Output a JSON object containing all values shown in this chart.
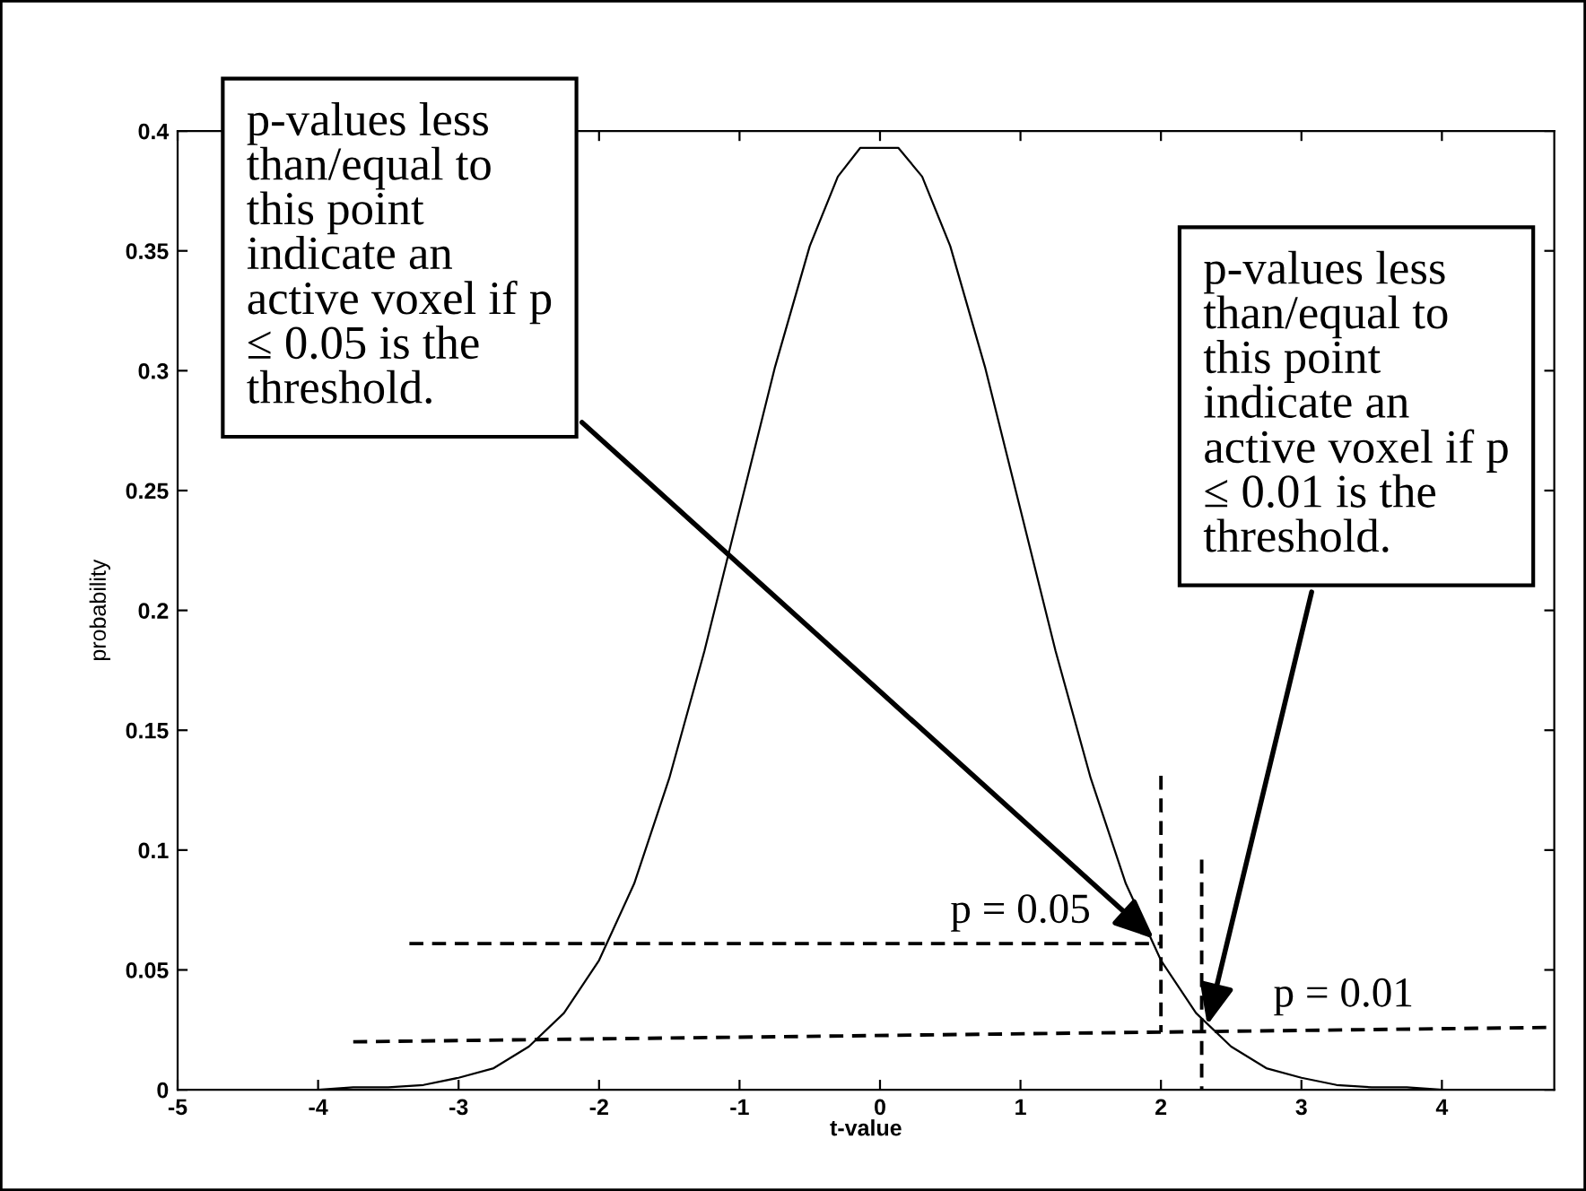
{
  "chart_data": {
    "type": "line",
    "xlabel": "t-value",
    "ylabel": "probability",
    "xlim": [
      -5,
      4.8
    ],
    "ylim": [
      0,
      0.4
    ],
    "xticks": [
      -5,
      -4,
      -3,
      -2,
      -1,
      0,
      1,
      2,
      3,
      4
    ],
    "yticks": [
      0,
      0.05,
      0.1,
      0.15,
      0.2,
      0.25,
      0.3,
      0.35,
      0.4
    ],
    "grid": false,
    "legend": false,
    "series": [
      {
        "color": "#000000",
        "line_style": "solid",
        "x": [
          -4,
          -3.75,
          -3.5,
          -3.25,
          -3,
          -2.75,
          -2.5,
          -2.25,
          -2,
          -1.75,
          -1.5,
          -1.25,
          -1,
          -0.75,
          -0.5,
          -0.3,
          -0.14,
          0.13,
          0.3,
          0.5,
          0.75,
          1,
          1.25,
          1.5,
          1.75,
          2,
          2.25,
          2.5,
          2.75,
          3,
          3.25,
          3.5,
          3.75,
          4
        ],
        "values": [
          0,
          0.001,
          0.001,
          0.002,
          0.005,
          0.009,
          0.018,
          0.032,
          0.054,
          0.086,
          0.13,
          0.183,
          0.242,
          0.301,
          0.352,
          0.381,
          0.393,
          0.393,
          0.381,
          0.352,
          0.301,
          0.242,
          0.183,
          0.13,
          0.086,
          0.054,
          0.032,
          0.018,
          0.009,
          0.005,
          0.002,
          0.001,
          0.001,
          0
        ]
      },
      {
        "color": "#000000",
        "line_style": "dashed",
        "x": [
          2.0,
          2.0
        ],
        "values": [
          0.131,
          0.024
        ]
      },
      {
        "color": "#000000",
        "line_style": "dashed",
        "x": [
          -3.35,
          2.0
        ],
        "values": [
          0.061,
          0.061
        ]
      },
      {
        "color": "#000000",
        "line_style": "dashed",
        "x": [
          2.29,
          2.29
        ],
        "values": [
          0.096,
          0
        ]
      },
      {
        "color": "#000000",
        "line_style": "dashed",
        "x": [
          -3.75,
          4.75
        ],
        "values": [
          0.02,
          0.026
        ]
      }
    ],
    "annotations": [
      {
        "text": "p-values less\nthan/equal to\nthis point\nindicate an\nactive voxel if p\n≤ 0.05 is the\nthreshold.",
        "x": 1.95,
        "y": 0.063
      },
      {
        "text": "p-values less\nthan/equal to\nthis point\nindicate an\nactive voxel if p\n≤ 0.01 is the\nthreshold.",
        "x": 2.33,
        "y": 0.027
      },
      {
        "text": "p = 0.05",
        "x": 1.0,
        "y": 0.062
      },
      {
        "text": "p = 0.01",
        "x": 3.3,
        "y": 0.027
      }
    ]
  }
}
